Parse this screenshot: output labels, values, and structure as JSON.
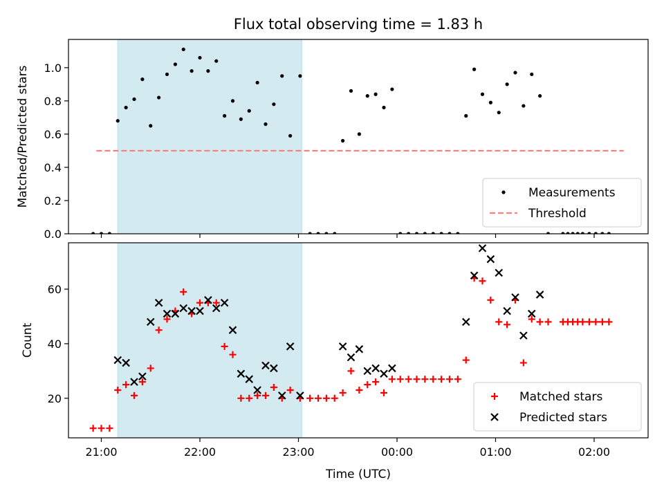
{
  "chart_data": [
    {
      "type": "scatter",
      "title": "Flux total observing time = 1.83 h",
      "ylabel": "Matched/Predicted stars",
      "xlabel": "",
      "x_tick_labels": [
        "21:00",
        "22:00",
        "23:00",
        "00:00",
        "01:00",
        "02:00"
      ],
      "ylim": [
        0,
        1.17
      ],
      "y_ticks": [
        "0.0",
        "0.2",
        "0.4",
        "0.6",
        "0.8",
        "1.0"
      ],
      "highlight_span": {
        "start": "21:10",
        "end": "23:02",
        "color": "#d3eaf0"
      },
      "legend_position": "lower-right",
      "series": [
        {
          "name": "Measurements",
          "marker": "dot",
          "color": "#000000",
          "points": [
            [
              "20:55",
              0.0
            ],
            [
              "21:00",
              0.0
            ],
            [
              "21:05",
              0.0
            ],
            [
              "21:10",
              0.68
            ],
            [
              "21:15",
              0.76
            ],
            [
              "21:20",
              0.81
            ],
            [
              "21:25",
              0.93
            ],
            [
              "21:30",
              0.65
            ],
            [
              "21:35",
              0.82
            ],
            [
              "21:40",
              0.96
            ],
            [
              "21:45",
              1.02
            ],
            [
              "21:50",
              1.11
            ],
            [
              "21:55",
              0.98
            ],
            [
              "22:00",
              1.06
            ],
            [
              "22:05",
              0.98
            ],
            [
              "22:10",
              1.04
            ],
            [
              "22:15",
              0.71
            ],
            [
              "22:20",
              0.8
            ],
            [
              "22:25",
              0.69
            ],
            [
              "22:30",
              0.74
            ],
            [
              "22:35",
              0.91
            ],
            [
              "22:40",
              0.66
            ],
            [
              "22:45",
              0.78
            ],
            [
              "22:50",
              0.95
            ],
            [
              "22:55",
              0.59
            ],
            [
              "23:01",
              0.95
            ],
            [
              "23:07",
              0.0
            ],
            [
              "23:12",
              0.0
            ],
            [
              "23:17",
              0.0
            ],
            [
              "23:22",
              0.0
            ],
            [
              "23:27",
              0.56
            ],
            [
              "23:32",
              0.86
            ],
            [
              "23:37",
              0.6
            ],
            [
              "23:42",
              0.83
            ],
            [
              "23:47",
              0.84
            ],
            [
              "23:52",
              0.76
            ],
            [
              "23:57",
              0.87
            ],
            [
              "00:02",
              0.0
            ],
            [
              "00:07",
              0.0
            ],
            [
              "00:12",
              0.0
            ],
            [
              "00:17",
              0.0
            ],
            [
              "00:22",
              0.0
            ],
            [
              "00:27",
              0.0
            ],
            [
              "00:32",
              0.0
            ],
            [
              "00:37",
              0.0
            ],
            [
              "00:42",
              0.71
            ],
            [
              "00:47",
              0.99
            ],
            [
              "00:52",
              0.84
            ],
            [
              "00:57",
              0.79
            ],
            [
              "01:02",
              0.73
            ],
            [
              "01:07",
              0.9
            ],
            [
              "01:12",
              0.97
            ],
            [
              "01:17",
              0.77
            ],
            [
              "01:22",
              0.96
            ],
            [
              "01:27",
              0.83
            ],
            [
              "01:32",
              0.0
            ],
            [
              "01:41",
              0.0
            ],
            [
              "01:44",
              0.0
            ],
            [
              "01:47",
              0.0
            ],
            [
              "01:50",
              0.0
            ],
            [
              "01:53",
              0.0
            ],
            [
              "01:57",
              0.0
            ],
            [
              "02:01",
              0.0
            ],
            [
              "02:05",
              0.0
            ],
            [
              "02:09",
              0.0
            ]
          ]
        },
        {
          "name": "Threshold",
          "line": "dashed",
          "color": "#ff7f7f",
          "points": [
            [
              "20:57",
              0.5
            ],
            [
              "02:18",
              0.5
            ]
          ]
        }
      ]
    },
    {
      "type": "scatter",
      "title": "",
      "ylabel": "Count",
      "xlabel": "Time (UTC)",
      "x_tick_labels": [
        "21:00",
        "22:00",
        "23:00",
        "00:00",
        "01:00",
        "02:00"
      ],
      "ylim": [
        5.5,
        77
      ],
      "y_ticks": [
        "20",
        "40",
        "60"
      ],
      "highlight_span": {
        "start": "21:10",
        "end": "23:02",
        "color": "#d3eaf0"
      },
      "legend_position": "lower-right",
      "series": [
        {
          "name": "Matched stars",
          "marker": "plus",
          "color": "#ff0000",
          "points": [
            [
              "20:55",
              9
            ],
            [
              "21:00",
              9
            ],
            [
              "21:05",
              9
            ],
            [
              "21:10",
              23
            ],
            [
              "21:15",
              25
            ],
            [
              "21:20",
              21
            ],
            [
              "21:25",
              26
            ],
            [
              "21:30",
              31
            ],
            [
              "21:35",
              45
            ],
            [
              "21:40",
              49
            ],
            [
              "21:45",
              52
            ],
            [
              "21:50",
              59
            ],
            [
              "21:55",
              51
            ],
            [
              "22:00",
              55
            ],
            [
              "22:05",
              55
            ],
            [
              "22:10",
              55
            ],
            [
              "22:15",
              39
            ],
            [
              "22:20",
              36
            ],
            [
              "22:25",
              20
            ],
            [
              "22:30",
              20
            ],
            [
              "22:35",
              21
            ],
            [
              "22:40",
              21
            ],
            [
              "22:45",
              24
            ],
            [
              "22:50",
              20
            ],
            [
              "22:55",
              23
            ],
            [
              "23:01",
              20
            ],
            [
              "23:07",
              20
            ],
            [
              "23:12",
              20
            ],
            [
              "23:17",
              20
            ],
            [
              "23:22",
              20
            ],
            [
              "23:27",
              22
            ],
            [
              "23:32",
              30
            ],
            [
              "23:37",
              23
            ],
            [
              "23:42",
              25
            ],
            [
              "23:47",
              26
            ],
            [
              "23:52",
              22
            ],
            [
              "23:57",
              27
            ],
            [
              "00:02",
              27
            ],
            [
              "00:07",
              27
            ],
            [
              "00:12",
              27
            ],
            [
              "00:17",
              27
            ],
            [
              "00:22",
              27
            ],
            [
              "00:27",
              27
            ],
            [
              "00:32",
              27
            ],
            [
              "00:37",
              27
            ],
            [
              "00:42",
              34
            ],
            [
              "00:47",
              64
            ],
            [
              "00:52",
              63
            ],
            [
              "00:57",
              56
            ],
            [
              "01:02",
              48
            ],
            [
              "01:07",
              47
            ],
            [
              "01:12",
              56
            ],
            [
              "01:17",
              33
            ],
            [
              "01:22",
              49
            ],
            [
              "01:27",
              48
            ],
            [
              "01:32",
              48
            ],
            [
              "01:41",
              48
            ],
            [
              "01:44",
              48
            ],
            [
              "01:47",
              48
            ],
            [
              "01:50",
              48
            ],
            [
              "01:53",
              48
            ],
            [
              "01:57",
              48
            ],
            [
              "02:01",
              48
            ],
            [
              "02:05",
              48
            ],
            [
              "02:09",
              48
            ]
          ]
        },
        {
          "name": "Predicted stars",
          "marker": "x",
          "color": "#000000",
          "points": [
            [
              "21:10",
              34
            ],
            [
              "21:15",
              33
            ],
            [
              "21:20",
              26
            ],
            [
              "21:25",
              28
            ],
            [
              "21:30",
              48
            ],
            [
              "21:35",
              55
            ],
            [
              "21:40",
              51
            ],
            [
              "21:45",
              51
            ],
            [
              "21:50",
              53
            ],
            [
              "21:55",
              52
            ],
            [
              "22:00",
              52
            ],
            [
              "22:05",
              56
            ],
            [
              "22:10",
              53
            ],
            [
              "22:15",
              55
            ],
            [
              "22:20",
              45
            ],
            [
              "22:25",
              29
            ],
            [
              "22:30",
              27
            ],
            [
              "22:35",
              23
            ],
            [
              "22:40",
              32
            ],
            [
              "22:45",
              31
            ],
            [
              "22:50",
              21
            ],
            [
              "22:55",
              39
            ],
            [
              "23:01",
              21
            ],
            [
              "23:27",
              39
            ],
            [
              "23:32",
              35
            ],
            [
              "23:37",
              38
            ],
            [
              "23:42",
              30
            ],
            [
              "23:47",
              31
            ],
            [
              "23:52",
              29
            ],
            [
              "23:57",
              31
            ],
            [
              "00:42",
              48
            ],
            [
              "00:47",
              65
            ],
            [
              "00:52",
              75
            ],
            [
              "00:57",
              71
            ],
            [
              "01:02",
              66
            ],
            [
              "01:07",
              52
            ],
            [
              "01:12",
              57
            ],
            [
              "01:17",
              43
            ],
            [
              "01:22",
              51
            ],
            [
              "01:27",
              58
            ]
          ]
        }
      ]
    }
  ]
}
